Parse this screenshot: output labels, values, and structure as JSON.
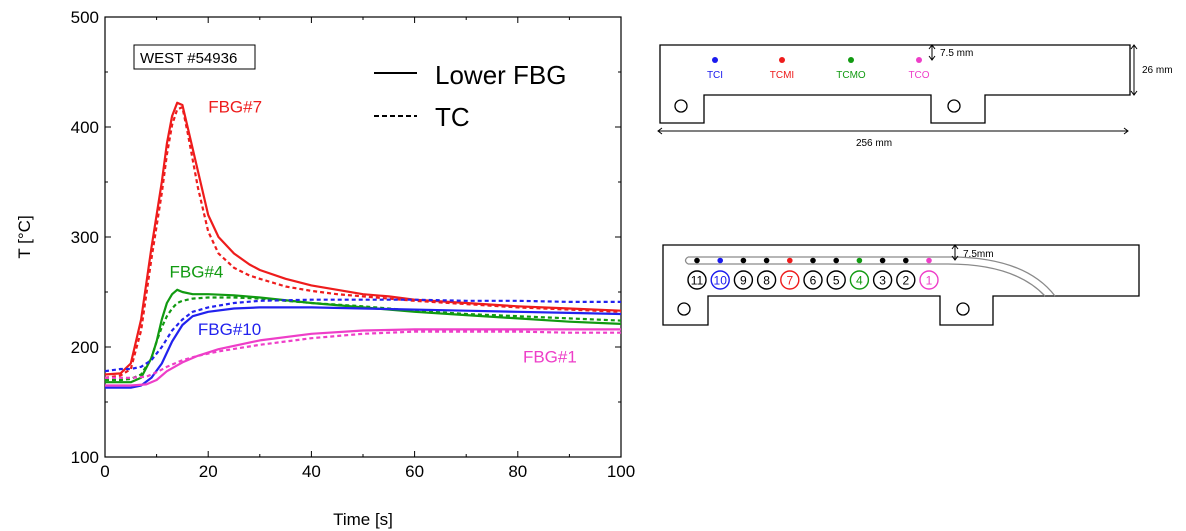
{
  "chart_data": [
    {
      "type": "line",
      "title": "",
      "annotation_box": "WEST #54936",
      "xlabel": "Time [s]",
      "ylabel": "T [°C]",
      "xlim": [
        0,
        100
      ],
      "ylim": [
        100,
        500
      ],
      "xticks": [
        0,
        20,
        40,
        60,
        80,
        100
      ],
      "yticks": [
        100,
        200,
        300,
        400,
        500
      ],
      "grid": false,
      "legend": {
        "placement": "top-right",
        "entries": [
          {
            "label": "Lower FBG",
            "style": "solid"
          },
          {
            "label": "TC",
            "style": "dashed"
          }
        ]
      },
      "series": [
        {
          "name": "FBG#7",
          "group": "fbg7",
          "style": "solid",
          "color": "#ee1c1c",
          "x": [
            0,
            3,
            5,
            7,
            9,
            11,
            12,
            13,
            14,
            15,
            16,
            18,
            20,
            22,
            25,
            28,
            30,
            35,
            40,
            45,
            50,
            55,
            60,
            70,
            80,
            90,
            100
          ],
          "y": [
            175,
            176,
            185,
            225,
            290,
            350,
            385,
            410,
            422,
            420,
            400,
            360,
            320,
            300,
            285,
            275,
            270,
            262,
            256,
            252,
            248,
            246,
            243,
            240,
            237,
            235,
            233
          ]
        },
        {
          "name": "FBG#7 TC",
          "group": "fbg7",
          "style": "dashed",
          "color": "#ee1c1c",
          "x": [
            0,
            3,
            5,
            7,
            9,
            11,
            12,
            13,
            14,
            15,
            16,
            18,
            20,
            22,
            25,
            28,
            30,
            35,
            40,
            45,
            50,
            55,
            60,
            70,
            80,
            90,
            100
          ],
          "y": [
            172,
            174,
            180,
            215,
            280,
            340,
            375,
            402,
            416,
            418,
            395,
            345,
            305,
            285,
            272,
            265,
            262,
            255,
            251,
            248,
            246,
            244,
            242,
            239,
            236,
            234,
            232
          ]
        },
        {
          "name": "FBG#4",
          "group": "fbg4",
          "style": "solid",
          "color": "#119a11",
          "x": [
            0,
            3,
            5,
            7,
            9,
            10,
            11,
            12,
            13,
            14,
            15,
            17,
            20,
            25,
            30,
            40,
            50,
            60,
            70,
            80,
            90,
            100
          ],
          "y": [
            168,
            168,
            168,
            172,
            190,
            205,
            225,
            240,
            248,
            252,
            250,
            248,
            248,
            247,
            245,
            240,
            236,
            232,
            229,
            226,
            223,
            221
          ]
        },
        {
          "name": "FBG#4 TC",
          "group": "fbg4",
          "style": "dashed",
          "color": "#119a11",
          "x": [
            0,
            3,
            5,
            7,
            9,
            10,
            11,
            12,
            13,
            14,
            15,
            17,
            20,
            25,
            30,
            40,
            50,
            60,
            70,
            80,
            90,
            100
          ],
          "y": [
            170,
            170,
            171,
            175,
            190,
            205,
            218,
            228,
            235,
            240,
            242,
            244,
            245,
            245,
            244,
            240,
            237,
            233,
            230,
            228,
            226,
            224
          ]
        },
        {
          "name": "FBG#10",
          "group": "fbg10",
          "style": "solid",
          "color": "#2222ee",
          "x": [
            0,
            3,
            5,
            7,
            9,
            11,
            13,
            15,
            17,
            20,
            25,
            30,
            40,
            50,
            60,
            70,
            80,
            90,
            100
          ],
          "y": [
            163,
            163,
            163,
            165,
            172,
            185,
            205,
            220,
            228,
            232,
            235,
            236,
            236,
            235,
            234,
            233,
            232,
            231,
            230
          ]
        },
        {
          "name": "FBG#10 TC",
          "group": "fbg10",
          "style": "dashed",
          "color": "#2222ee",
          "x": [
            0,
            3,
            5,
            7,
            9,
            11,
            13,
            15,
            17,
            20,
            25,
            30,
            40,
            50,
            60,
            70,
            80,
            90,
            100
          ],
          "y": [
            178,
            180,
            180,
            182,
            188,
            200,
            215,
            225,
            232,
            236,
            240,
            242,
            243,
            243,
            243,
            242,
            242,
            241,
            241
          ]
        },
        {
          "name": "FBG#1",
          "group": "fbg1",
          "style": "solid",
          "color": "#ee3ec8",
          "x": [
            0,
            5,
            8,
            10,
            12,
            15,
            18,
            22,
            30,
            40,
            50,
            60,
            70,
            80,
            90,
            100
          ],
          "y": [
            165,
            165,
            166,
            170,
            178,
            186,
            192,
            198,
            206,
            212,
            215,
            216,
            216,
            216,
            216,
            216
          ]
        },
        {
          "name": "FBG#1 TC",
          "group": "fbg1",
          "style": "dashed",
          "color": "#ee3ec8",
          "x": [
            0,
            5,
            8,
            10,
            12,
            15,
            18,
            22,
            30,
            40,
            50,
            60,
            70,
            80,
            90,
            100
          ],
          "y": [
            172,
            172,
            173,
            177,
            182,
            188,
            192,
            196,
            202,
            208,
            212,
            214,
            214,
            214,
            213,
            213
          ]
        }
      ],
      "series_labels": [
        {
          "text": "FBG#7",
          "color": "#ee1c1c",
          "x": 20,
          "y": 413
        },
        {
          "text": "FBG#4",
          "color": "#119a11",
          "x": 12.5,
          "y": 263
        },
        {
          "text": "FBG#10",
          "color": "#2222ee",
          "x": 18,
          "y": 211
        },
        {
          "text": "FBG#1",
          "color": "#ee3ec8",
          "x": 81,
          "y": 186
        }
      ]
    }
  ],
  "diagram_top": {
    "sensors": [
      {
        "label": "TCI",
        "color": "#1a1aee"
      },
      {
        "label": "TCMI",
        "color": "#ee1c1c"
      },
      {
        "label": "TCMO",
        "color": "#119a11"
      },
      {
        "label": "TCO",
        "color": "#ee3ec8"
      }
    ],
    "depth_label": "7.5 mm",
    "height_label": "26 mm",
    "length_label": "256 mm"
  },
  "diagram_bottom": {
    "depth_label": "7.5mm",
    "numbers": [
      {
        "n": "11",
        "color": "#000000"
      },
      {
        "n": "10",
        "color": "#1a1aee"
      },
      {
        "n": "9",
        "color": "#000000"
      },
      {
        "n": "8",
        "color": "#000000"
      },
      {
        "n": "7",
        "color": "#ee1c1c"
      },
      {
        "n": "6",
        "color": "#000000"
      },
      {
        "n": "5",
        "color": "#000000"
      },
      {
        "n": "4",
        "color": "#119a11"
      },
      {
        "n": "3",
        "color": "#000000"
      },
      {
        "n": "2",
        "color": "#000000"
      },
      {
        "n": "1",
        "color": "#ee3ec8"
      }
    ],
    "dot_colors": [
      "#000000",
      "#1a1aee",
      "#000000",
      "#000000",
      "#ee1c1c",
      "#000000",
      "#000000",
      "#119a11",
      "#000000",
      "#000000",
      "#ee3ec8"
    ]
  }
}
